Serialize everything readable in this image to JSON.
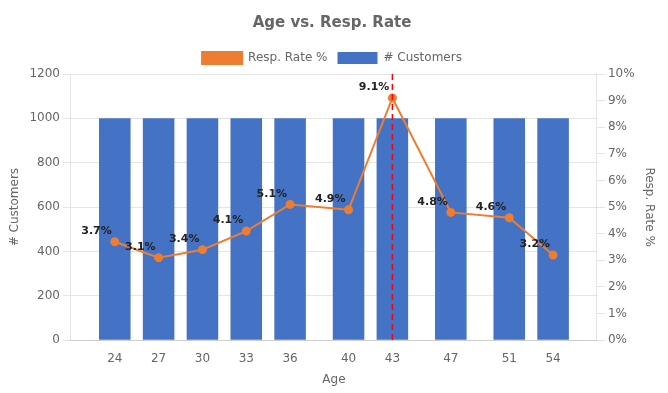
{
  "chart_data": {
    "type": "bar",
    "title": "Age vs. Resp. Rate",
    "xlabel": "Age",
    "ylabel": "# Customers",
    "y2label": "Resp. Rate %",
    "x": [
      24,
      27,
      30,
      33,
      36,
      40,
      43,
      47,
      51,
      54
    ],
    "xlim": [
      21,
      57
    ],
    "xticks": [
      24,
      27,
      30,
      33,
      36,
      40,
      43,
      47,
      51,
      54
    ],
    "ylim": [
      0,
      1200
    ],
    "yticks": [
      0,
      200,
      400,
      600,
      800,
      1000,
      1200
    ],
    "y2lim": [
      0,
      10
    ],
    "y2ticks": [
      {
        "value": 0,
        "label": "0%"
      },
      {
        "value": 1,
        "label": "1%"
      },
      {
        "value": 2,
        "label": "2%"
      },
      {
        "value": 3,
        "label": "3%"
      },
      {
        "value": 4,
        "label": "4%"
      },
      {
        "value": 5,
        "label": "5%"
      },
      {
        "value": 6,
        "label": "6%"
      },
      {
        "value": 7,
        "label": "7%"
      },
      {
        "value": 8,
        "label": "8%"
      },
      {
        "value": 9,
        "label": "9%"
      },
      {
        "value": 10,
        "label": "10%"
      }
    ],
    "grid": "y",
    "legend": "top",
    "series": [
      {
        "name": "# Customers",
        "type": "bar",
        "color": "#4472C4",
        "values": [
          1000,
          1000,
          1000,
          1000,
          1000,
          1000,
          1000,
          1000,
          1000,
          1000
        ]
      },
      {
        "name": "Resp. Rate %",
        "type": "line",
        "color": "#ED7D31",
        "axis": "y2",
        "marker": "circle",
        "data_labels": true,
        "values": [
          3.7,
          3.1,
          3.4,
          4.1,
          5.1,
          4.9,
          9.1,
          4.8,
          4.6,
          3.2
        ],
        "value_labels": [
          "3.7%",
          "3.1%",
          "3.4%",
          "4.1%",
          "5.1%",
          "4.9%",
          "9.1%",
          "4.8%",
          "4.6%",
          "3.2%"
        ]
      }
    ],
    "reference_lines": [
      {
        "x": 43,
        "color": "#FF0000",
        "line_style": "dashed"
      }
    ]
  }
}
